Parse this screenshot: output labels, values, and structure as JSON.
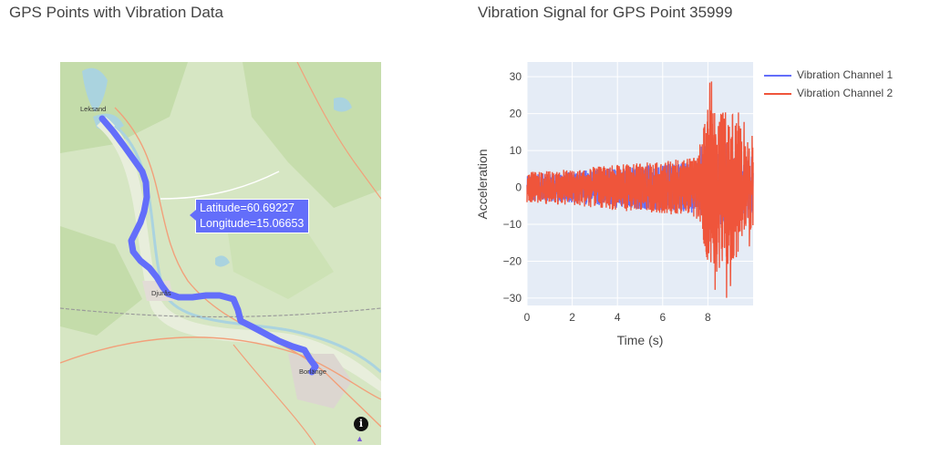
{
  "map": {
    "title": "GPS Points with Vibration Data",
    "tooltip": {
      "latitude": "Latitude=60.69227",
      "longitude": "Longitude=15.06653"
    },
    "places": [
      "Leksand",
      "Djurås",
      "Borlänge"
    ],
    "route_color": "#636efa",
    "info_label": "i"
  },
  "chart_data": {
    "type": "line",
    "title": "Vibration Signal for GPS Point 35999",
    "xlabel": "Time (s)",
    "ylabel": "Acceleration",
    "xlim": [
      0,
      10
    ],
    "ylim": [
      -32,
      34
    ],
    "x_ticks": [
      0,
      2,
      4,
      6,
      8
    ],
    "y_ticks": [
      -30,
      -20,
      -10,
      0,
      10,
      20,
      30
    ],
    "grid": true,
    "legend_position": "right",
    "series": [
      {
        "name": "Vibration Channel 1",
        "color": "#636efa",
        "envelope": [
          [
            0,
            5
          ],
          [
            2,
            6
          ],
          [
            4,
            8
          ],
          [
            6,
            9
          ],
          [
            7.5,
            10
          ],
          [
            8,
            18
          ],
          [
            9,
            12
          ],
          [
            10,
            10
          ]
        ]
      },
      {
        "name": "Vibration Channel 2",
        "color": "#ef553b",
        "envelope": [
          [
            0,
            6
          ],
          [
            2,
            7
          ],
          [
            4,
            9
          ],
          [
            6,
            10
          ],
          [
            7.5,
            12
          ],
          [
            8,
            30
          ],
          [
            9,
            30
          ],
          [
            10,
            15
          ]
        ]
      }
    ]
  }
}
